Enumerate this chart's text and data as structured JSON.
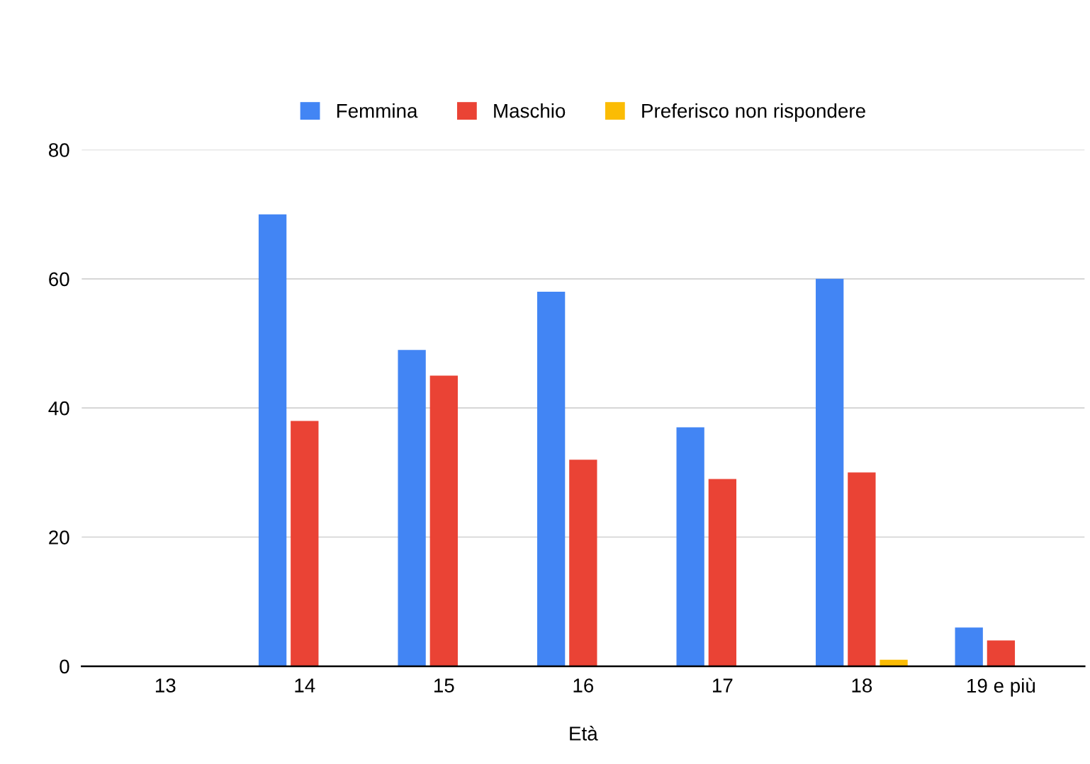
{
  "chart_data": {
    "type": "bar",
    "xlabel": "Età",
    "categories": [
      "13",
      "14",
      "15",
      "16",
      "17",
      "18",
      "19 e più"
    ],
    "series": [
      {
        "name": "Femmina",
        "color": "#4285f4",
        "values": [
          0,
          70,
          49,
          58,
          37,
          60,
          6
        ]
      },
      {
        "name": "Maschio",
        "color": "#ea4335",
        "values": [
          0,
          38,
          45,
          32,
          29,
          30,
          4
        ]
      },
      {
        "name": "Preferisco non rispondere",
        "color": "#fbbc04",
        "values": [
          0,
          0,
          0,
          0,
          0,
          1,
          0
        ]
      }
    ],
    "ylim": [
      0,
      80
    ],
    "yticks": [
      0,
      20,
      40,
      60,
      80
    ],
    "grid": "y",
    "legend": "top"
  }
}
